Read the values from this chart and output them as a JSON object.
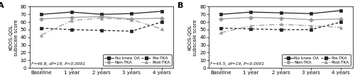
{
  "xticklabels": [
    "Baseline",
    "1 year",
    "2 years",
    "3 years",
    "4 years"
  ],
  "x": [
    0,
    1,
    2,
    3,
    4
  ],
  "panel_A": {
    "label": "A",
    "stat_text": "F=46.8, df=19, P<0.0001",
    "series": [
      {
        "name": "No knee OA",
        "y": [
          70,
          73,
          70,
          71,
          74
        ],
        "linestyle": "solid",
        "marker": "s",
        "color": "#222222",
        "dashes": null
      },
      {
        "name": "Non-TKA",
        "y": [
          64,
          66,
          67,
          64,
          65
        ],
        "linestyle": "solid",
        "marker": "D",
        "color": "#999999",
        "dashes": null
      },
      {
        "name": "Pre-TKA",
        "y": [
          52,
          50,
          49,
          48,
          60
        ],
        "linestyle": "dashed",
        "marker": "s",
        "color": "#222222",
        "dashes": [
          3,
          2
        ]
      },
      {
        "name": "Post-TKA",
        "y": [
          43,
          62,
          65,
          63,
          51
        ],
        "linestyle": "dashed",
        "marker": "^",
        "color": "#999999",
        "dashes": [
          6,
          2,
          1,
          2
        ]
      }
    ]
  },
  "panel_B": {
    "label": "B",
    "stat_text": "F=45.5, df=19, P<0.0001",
    "series": [
      {
        "name": "No knee OA",
        "y": [
          70,
          73,
          72,
          71,
          75
        ],
        "linestyle": "solid",
        "marker": "s",
        "color": "#222222",
        "dashes": null
      },
      {
        "name": "Non-TKA",
        "y": [
          64,
          66,
          65,
          63,
          64
        ],
        "linestyle": "solid",
        "marker": "D",
        "color": "#999999",
        "dashes": null
      },
      {
        "name": "Pre-TKA",
        "y": [
          52,
          51,
          50,
          50,
          60
        ],
        "linestyle": "dashed",
        "marker": "s",
        "color": "#222222",
        "dashes": [
          3,
          2
        ]
      },
      {
        "name": "Post-TKA",
        "y": [
          46,
          55,
          57,
          55,
          53
        ],
        "linestyle": "dashed",
        "marker": "^",
        "color": "#999999",
        "dashes": [
          6,
          2,
          1,
          2
        ]
      }
    ]
  },
  "ylim": [
    0,
    80
  ],
  "yticks": [
    0,
    10,
    20,
    30,
    40,
    50,
    60,
    70,
    80
  ],
  "ylabel": "KOOS-QOL\nsubscale score",
  "legend_order": [
    "No knee OA",
    "Non-TKA",
    "Pre-TKA",
    "Post-TKA"
  ],
  "markersize": 3,
  "linewidth": 0.9,
  "fontsize_tick": 5,
  "fontsize_label": 5,
  "fontsize_stat": 4.2,
  "fontsize_legend": 4.2,
  "fontsize_panel": 8
}
